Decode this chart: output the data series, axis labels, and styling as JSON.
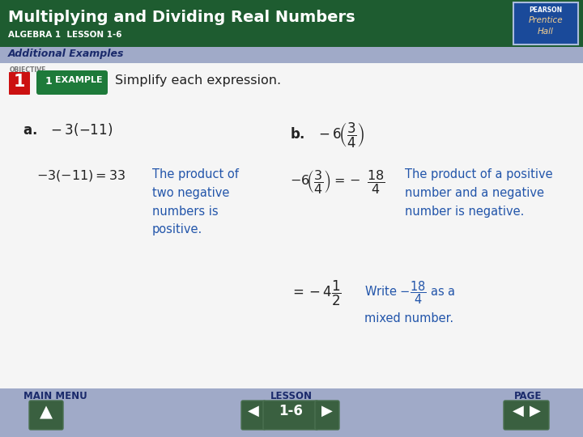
{
  "title": "Multiplying and Dividing Real Numbers",
  "subtitle": "ALGEBRA 1  LESSON 1-6",
  "header_bg": "#1e5c30",
  "header_text_color": "#ffffff",
  "section_bar_color": "#a0aac8",
  "section_bar_text": "Additional Examples",
  "section_bar_text_color": "#1a2a6b",
  "body_bg": "#f2f2f2",
  "footer_bg": "#a0aac8",
  "footer_text_color": "#1a2a6b",
  "footer_items": [
    "MAIN MENU",
    "LESSON",
    "PAGE"
  ],
  "footer_lesson": "1-6",
  "dark_green": "#1e5c30",
  "blue_text": "#2255aa",
  "dark_blue": "#1a2a6b",
  "body_text": "#222222"
}
